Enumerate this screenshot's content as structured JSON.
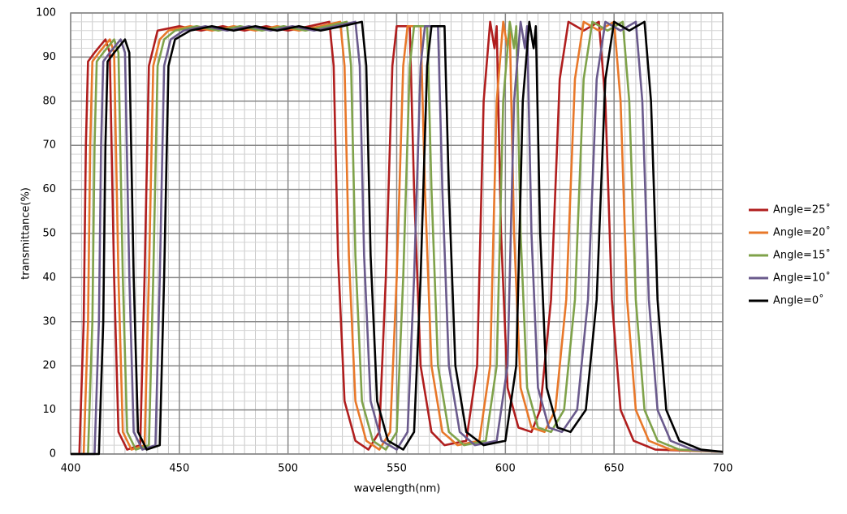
{
  "chart_data": {
    "type": "line",
    "xlabel": "wavelength(nm)",
    "ylabel": "transmittance(%)",
    "xlim": [
      400,
      700
    ],
    "xticks": [
      400,
      450,
      500,
      550,
      600,
      650,
      700
    ],
    "ylim": [
      0,
      100
    ],
    "yticks": [
      0,
      10,
      20,
      30,
      40,
      50,
      60,
      70,
      80,
      90,
      100
    ],
    "grid": true,
    "legend": "right",
    "series": [
      {
        "name": "Angle=25˚",
        "color": "#b01e1e",
        "x": [
          400,
          404,
          406,
          407,
          408,
          411,
          416,
          418,
          420,
          422,
          426,
          432,
          434,
          436,
          439,
          440,
          450,
          460,
          470,
          480,
          490,
          500,
          510,
          519,
          521,
          523,
          526,
          531,
          537,
          542,
          545,
          548,
          550,
          556,
          558,
          561,
          566,
          572,
          582,
          587,
          590,
          593,
          595,
          596,
          598,
          601,
          606,
          612,
          616,
          621,
          625,
          629,
          636,
          643,
          646,
          649,
          653,
          659,
          669,
          700
        ],
        "values": [
          0,
          0,
          30,
          70,
          89,
          91,
          94,
          91,
          40,
          5,
          1,
          2,
          40,
          88,
          94,
          96,
          97,
          96,
          97,
          96,
          97,
          96,
          97,
          98,
          88,
          45,
          12,
          3,
          1,
          5,
          40,
          88,
          97,
          97,
          60,
          20,
          5,
          2,
          3,
          20,
          80,
          98,
          92,
          97,
          50,
          15,
          6,
          5,
          10,
          35,
          85,
          98,
          96,
          98,
          80,
          35,
          10,
          3,
          1,
          0.5
        ]
      },
      {
        "name": "Angle=20˚",
        "color": "#e8782a",
        "x": [
          400,
          406,
          408,
          409,
          410,
          413,
          418,
          420,
          422,
          424,
          428,
          434,
          436,
          438,
          441,
          445,
          455,
          465,
          475,
          485,
          495,
          505,
          515,
          524,
          526,
          528,
          531,
          536,
          542,
          547,
          550,
          553,
          555,
          561,
          563,
          566,
          571,
          578,
          588,
          593,
          596,
          599,
          601,
          602,
          604,
          607,
          612,
          618,
          623,
          628,
          632,
          636,
          643,
          650,
          653,
          656,
          660,
          666,
          676,
          700
        ],
        "values": [
          0,
          0,
          30,
          70,
          89,
          91,
          94,
          91,
          40,
          5,
          1,
          2,
          40,
          88,
          94,
          96,
          97,
          96,
          97,
          96,
          97,
          96,
          97,
          98,
          88,
          45,
          12,
          3,
          1,
          5,
          40,
          88,
          97,
          97,
          60,
          20,
          5,
          2,
          3,
          20,
          80,
          98,
          92,
          97,
          50,
          15,
          6,
          5,
          10,
          35,
          85,
          98,
          96,
          98,
          80,
          35,
          10,
          3,
          1,
          0.5
        ]
      },
      {
        "name": "Angle=15˚",
        "color": "#7fa24a",
        "x": [
          400,
          408,
          410,
          411,
          412,
          415,
          420,
          422,
          424,
          426,
          430,
          436,
          438,
          440,
          443,
          448,
          458,
          468,
          478,
          488,
          498,
          508,
          518,
          527,
          529,
          531,
          534,
          539,
          545,
          550,
          553,
          556,
          558,
          564,
          566,
          569,
          574,
          581,
          591,
          596,
          599,
          602,
          604,
          605,
          607,
          610,
          615,
          621,
          627,
          632,
          636,
          640,
          647,
          654,
          657,
          660,
          664,
          670,
          680,
          700
        ],
        "values": [
          0,
          0,
          30,
          70,
          89,
          91,
          94,
          91,
          40,
          5,
          1,
          2,
          40,
          88,
          94,
          96,
          97,
          96,
          97,
          96,
          97,
          96,
          97,
          98,
          88,
          45,
          12,
          3,
          1,
          5,
          40,
          88,
          97,
          97,
          60,
          20,
          5,
          2,
          3,
          20,
          80,
          98,
          92,
          97,
          50,
          15,
          6,
          5,
          10,
          35,
          85,
          98,
          96,
          98,
          80,
          35,
          10,
          3,
          1,
          0.5
        ]
      },
      {
        "name": "Angle=10˚",
        "color": "#6a5a8c",
        "x": [
          400,
          411,
          413,
          414,
          415,
          418,
          423,
          425,
          427,
          429,
          433,
          439,
          441,
          443,
          446,
          452,
          462,
          472,
          482,
          492,
          502,
          512,
          522,
          531,
          533,
          535,
          538,
          543,
          550,
          555,
          558,
          561,
          563,
          569,
          571,
          574,
          579,
          586,
          596,
          601,
          604,
          607,
          609,
          610,
          612,
          615,
          620,
          626,
          633,
          638,
          642,
          646,
          653,
          660,
          663,
          666,
          670,
          676,
          686,
          700
        ],
        "values": [
          0,
          0,
          30,
          70,
          89,
          91,
          94,
          91,
          40,
          5,
          1,
          2,
          40,
          88,
          94,
          96,
          97,
          96,
          97,
          96,
          97,
          96,
          97,
          98,
          88,
          45,
          12,
          3,
          1,
          5,
          40,
          88,
          97,
          97,
          60,
          20,
          5,
          2,
          3,
          20,
          80,
          98,
          92,
          97,
          50,
          15,
          6,
          5,
          10,
          35,
          85,
          98,
          96,
          98,
          80,
          35,
          10,
          3,
          1,
          0.5
        ]
      },
      {
        "name": "Angle=0˚",
        "color": "#000000",
        "x": [
          400,
          413,
          415,
          416,
          417,
          420,
          425,
          427,
          429,
          431,
          435,
          441,
          443,
          445,
          448,
          455,
          465,
          475,
          485,
          495,
          505,
          515,
          525,
          534,
          536,
          538,
          541,
          546,
          553,
          558,
          561,
          564,
          566,
          572,
          574,
          577,
          582,
          590,
          600,
          605,
          608,
          611,
          613,
          614,
          616,
          619,
          624,
          630,
          637,
          642,
          646,
          650,
          657,
          664,
          667,
          670,
          674,
          680,
          690,
          700
        ],
        "values": [
          0,
          0,
          30,
          70,
          89,
          91,
          94,
          91,
          40,
          5,
          1,
          2,
          40,
          88,
          94,
          96,
          97,
          96,
          97,
          96,
          97,
          96,
          97,
          98,
          88,
          45,
          12,
          3,
          1,
          5,
          40,
          88,
          97,
          97,
          60,
          20,
          5,
          2,
          3,
          20,
          80,
          98,
          92,
          97,
          50,
          15,
          6,
          5,
          10,
          35,
          85,
          98,
          96,
          98,
          80,
          35,
          10,
          3,
          1,
          0.5
        ]
      }
    ]
  }
}
